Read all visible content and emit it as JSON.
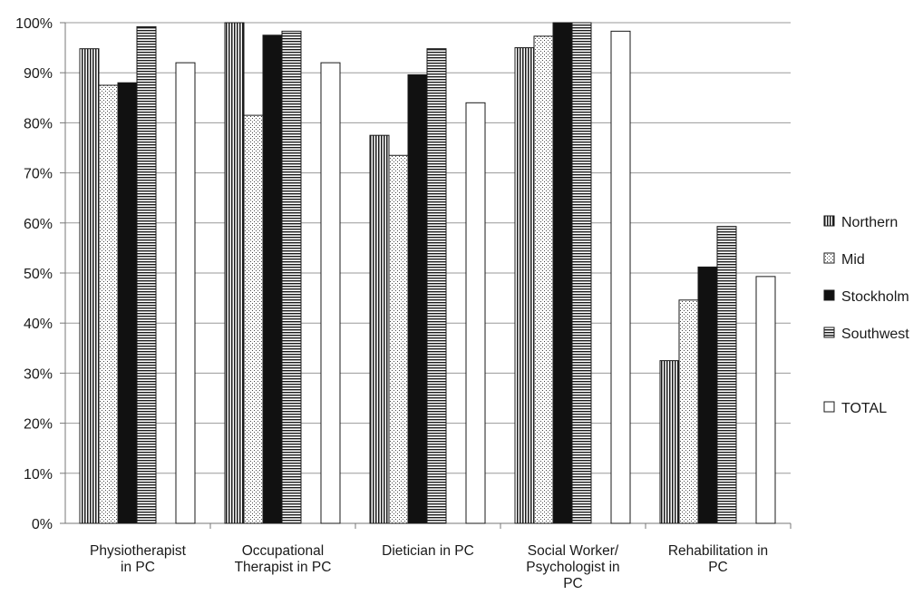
{
  "chart_data": {
    "type": "bar",
    "title": "",
    "xlabel": "",
    "ylabel": "",
    "ylim": [
      0,
      100
    ],
    "y_ticks": [
      "0%",
      "10%",
      "20%",
      "30%",
      "40%",
      "50%",
      "60%",
      "70%",
      "80%",
      "90%",
      "100%"
    ],
    "grid": true,
    "legend_position": "right",
    "categories": [
      [
        "Physiotherapist",
        "in PC"
      ],
      [
        "Occupational",
        "Therapist in PC"
      ],
      [
        "Dietician in PC"
      ],
      [
        "Social Worker/",
        "Psychologist in",
        "PC"
      ],
      [
        "Rehabilitation in",
        "PC"
      ]
    ],
    "series": [
      {
        "name": "Northern",
        "pattern": "vertical-lines",
        "values": [
          94.8,
          100,
          77.5,
          95.0,
          32.5
        ]
      },
      {
        "name": "Mid",
        "pattern": "dots",
        "values": [
          87.5,
          81.5,
          73.5,
          97.3,
          44.6
        ]
      },
      {
        "name": "Stockholm",
        "pattern": "solid-black",
        "values": [
          88.0,
          97.5,
          89.6,
          100,
          51.2
        ]
      },
      {
        "name": "Southwest",
        "pattern": "horizontal-lines",
        "values": [
          99.2,
          98.3,
          94.8,
          100,
          59.3
        ]
      },
      {
        "name": "TOTAL",
        "pattern": "white",
        "values": [
          92.0,
          92.0,
          84.0,
          98.3,
          49.3
        ]
      }
    ]
  }
}
